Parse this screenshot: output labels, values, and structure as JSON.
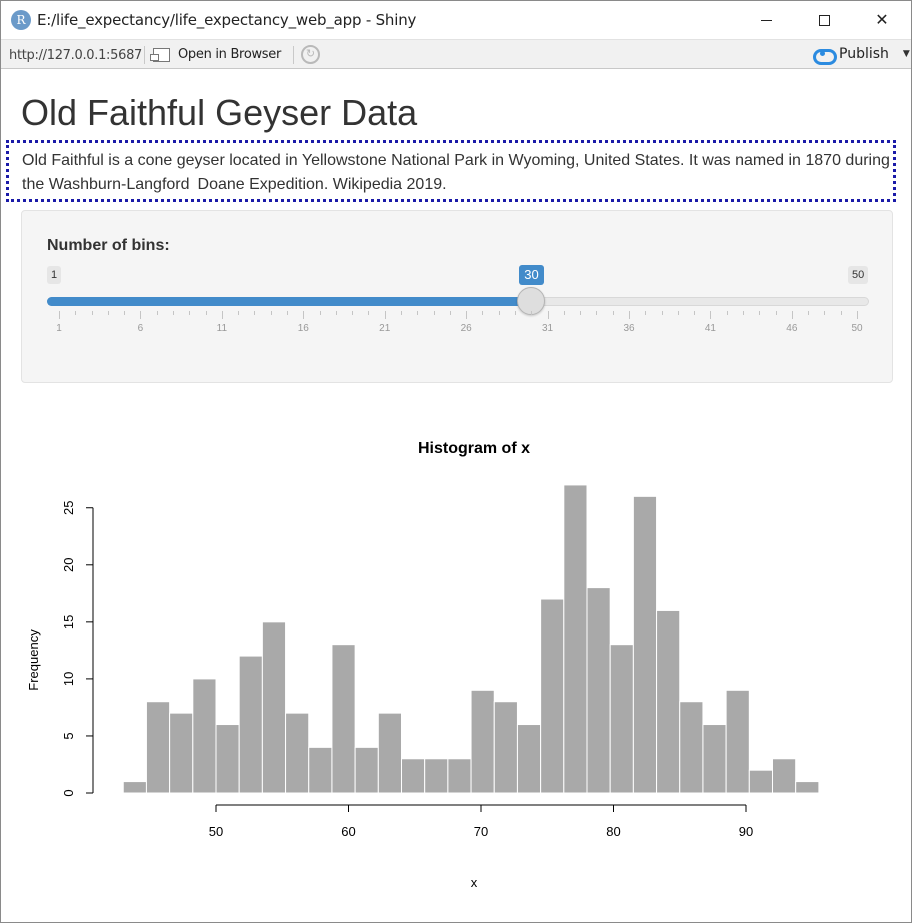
{
  "window": {
    "title": "E:/life_expectancy/life_expectancy_web_app - Shiny",
    "icon": "R"
  },
  "toolbar": {
    "url": "http://127.0.0.1:5687",
    "open_browser_label": "Open in Browser",
    "publish_label": "Publish"
  },
  "page": {
    "title": "Old Faithful Geyser Data",
    "description": "Old Faithful is a cone geyser located in Yellowstone National Park in Wyoming, United States. It was named in 1870 during the Washburn-Langford Doane Expedition. Wikipedia 2019."
  },
  "slider": {
    "label": "Number of bins:",
    "min": 1,
    "max": 50,
    "value": 30,
    "min_label": "1",
    "max_label": "50",
    "value_label": "30",
    "tick_labels": [
      "1",
      "6",
      "11",
      "16",
      "21",
      "26",
      "31",
      "36",
      "41",
      "46",
      "50"
    ]
  },
  "chart_data": {
    "type": "bar",
    "title": "Histogram of x",
    "xlabel": "x",
    "ylabel": "Frequency",
    "bin_width": 1.75,
    "bin_start": 43,
    "values": [
      1,
      8,
      7,
      10,
      6,
      12,
      15,
      7,
      4,
      13,
      4,
      7,
      3,
      3,
      3,
      9,
      8,
      6,
      17,
      27,
      18,
      13,
      26,
      16,
      8,
      6,
      9,
      2,
      3,
      1
    ],
    "xticks": [
      50,
      60,
      70,
      80,
      90
    ],
    "yticks": [
      0,
      5,
      10,
      15,
      20,
      25
    ],
    "xlim": [
      43,
      97.5
    ],
    "ylim": [
      0,
      27
    ],
    "bar_color": "#a9a9a9",
    "grid": false
  },
  "colors": {
    "accent": "#428bca",
    "focus_outline": "#1a1aa8"
  }
}
